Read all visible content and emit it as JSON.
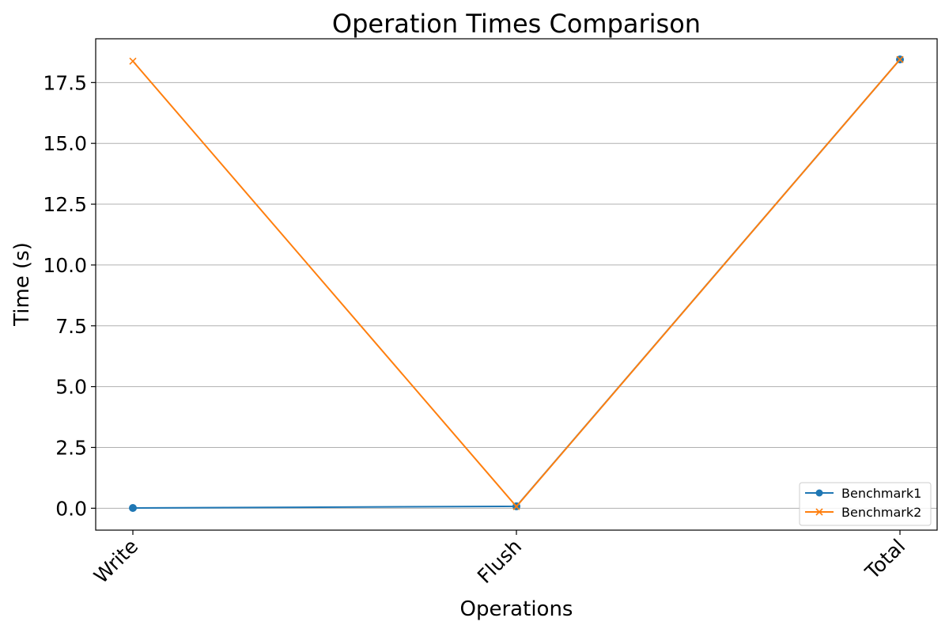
{
  "chart_data": {
    "type": "line",
    "title": "Operation Times Comparison",
    "xlabel": "Operations",
    "ylabel": "Time (s)",
    "categories": [
      "Write",
      "Flush",
      "Total"
    ],
    "ylim": [
      -0.9,
      19.3
    ],
    "yticks": [
      "0.0",
      "2.5",
      "5.0",
      "7.5",
      "10.0",
      "12.5",
      "15.0",
      "17.5"
    ],
    "grid": "horizontal",
    "legend_position": "lower-right",
    "series": [
      {
        "name": "Benchmark1",
        "values": [
          0.01,
          0.08,
          18.45
        ],
        "color": "#1f77b4",
        "marker": "circle"
      },
      {
        "name": "Benchmark2",
        "values": [
          18.38,
          0.07,
          18.45
        ],
        "color": "#ff7f0e",
        "marker": "x"
      }
    ]
  }
}
